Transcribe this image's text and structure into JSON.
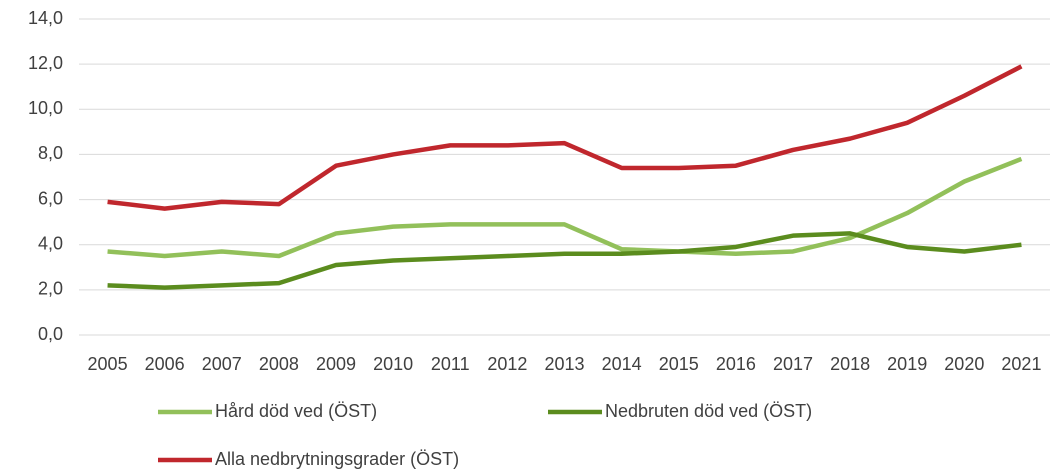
{
  "chart_data": {
    "type": "line",
    "categories": [
      "2005",
      "2006",
      "2007",
      "2008",
      "2009",
      "2010",
      "2011",
      "2012",
      "2013",
      "2014",
      "2015",
      "2016",
      "2017",
      "2018",
      "2019",
      "2020",
      "2021"
    ],
    "series": [
      {
        "name": "Hård död ved (ÖST)",
        "color": "#92c05a",
        "values": [
          3.7,
          3.5,
          3.7,
          3.5,
          4.5,
          4.8,
          4.9,
          4.9,
          4.9,
          3.8,
          3.7,
          3.6,
          3.7,
          4.3,
          5.4,
          6.8,
          7.8
        ]
      },
      {
        "name": "Nedbruten död ved (ÖST)",
        "color": "#5b8c1e",
        "values": [
          2.2,
          2.1,
          2.2,
          2.3,
          3.1,
          3.3,
          3.4,
          3.5,
          3.6,
          3.6,
          3.7,
          3.9,
          4.4,
          4.5,
          3.9,
          3.7,
          4.0
        ]
      },
      {
        "name": "Alla nedbrytningsgrader (ÖST)",
        "color": "#c0272d",
        "values": [
          5.9,
          5.6,
          5.9,
          5.8,
          7.5,
          8.0,
          8.4,
          8.4,
          8.5,
          7.4,
          7.4,
          7.5,
          8.2,
          8.7,
          9.4,
          10.6,
          11.9
        ]
      }
    ],
    "ylim": [
      0,
      14
    ],
    "yticks": [
      {
        "value": 0,
        "label": "0,0"
      },
      {
        "value": 2,
        "label": "2,0"
      },
      {
        "value": 4,
        "label": "4,0"
      },
      {
        "value": 6,
        "label": "6,0"
      },
      {
        "value": 8,
        "label": "8,0"
      },
      {
        "value": 10,
        "label": "10,0"
      },
      {
        "value": 12,
        "label": "12,0"
      },
      {
        "value": 14,
        "label": "14,0"
      }
    ],
    "grid": true,
    "legend": "bottom"
  }
}
